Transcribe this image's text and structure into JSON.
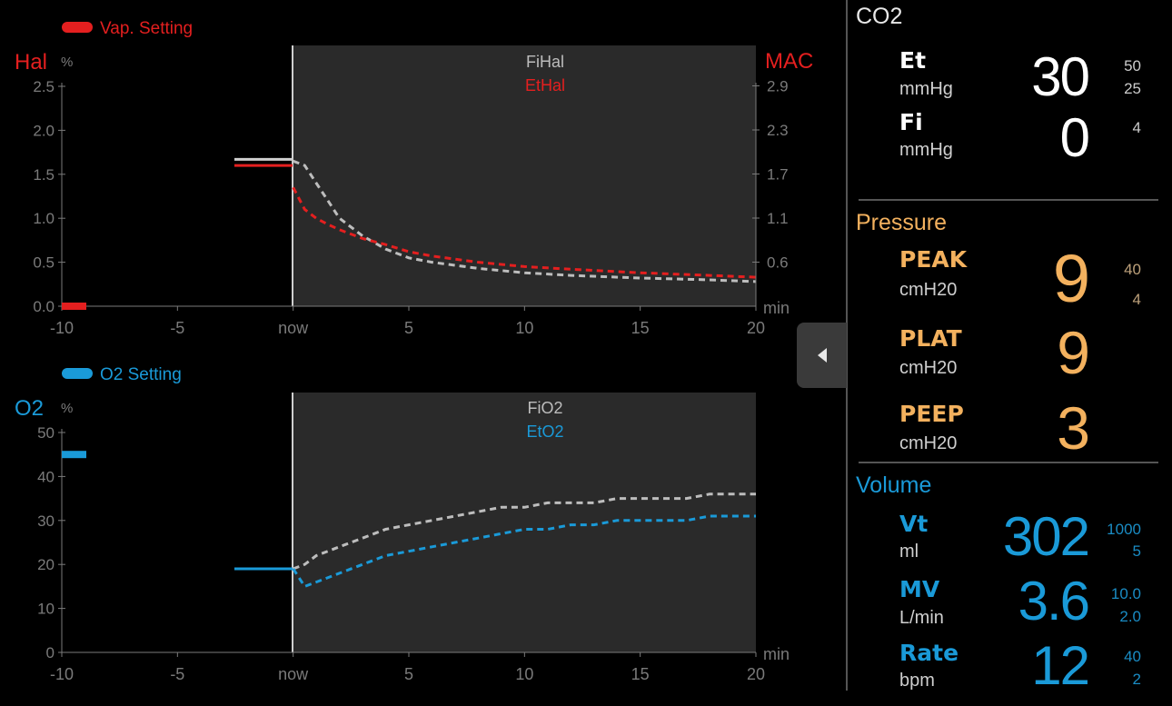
{
  "colors": {
    "red": "#e41f1f",
    "blue": "#1a9ad8",
    "orange": "#f3b15e",
    "white": "#ffffff",
    "grey": "#7a7a7a",
    "panel": "#2a2a2a"
  },
  "hal_chart": {
    "legend_label": "Vap. Setting",
    "left_axis_title": "Hal",
    "left_unit": "%",
    "right_axis_title": "MAC",
    "trace_label_1": "FiHal",
    "trace_label_2": "EtHal",
    "x_unit": "min",
    "x_ticks": [
      "-10",
      "-5",
      "now",
      "5",
      "10",
      "15",
      "20"
    ],
    "y_ticks": [
      "0.0",
      "0.5",
      "1.0",
      "1.5",
      "2.0",
      "2.5"
    ],
    "right_ticks": [
      "0.6",
      "1.1",
      "1.7",
      "2.3",
      "2.9"
    ]
  },
  "o2_chart": {
    "legend_label": "O2 Setting",
    "left_axis_title": "O2",
    "left_unit": "%",
    "trace_label_1": "FiO2",
    "trace_label_2": "EtO2",
    "x_unit": "min",
    "x_ticks": [
      "-10",
      "-5",
      "now",
      "5",
      "10",
      "15",
      "20"
    ],
    "y_ticks": [
      "0",
      "10",
      "20",
      "30",
      "40",
      "50"
    ]
  },
  "chart_data": [
    {
      "type": "line",
      "title": "",
      "xlabel": "min",
      "ylabel": "Hal %",
      "xlim": [
        -10,
        20
      ],
      "ylim": [
        0,
        2.5
      ],
      "series": [
        {
          "name": "FiHal",
          "x": [
            0,
            0.5,
            1,
            1.5,
            2,
            3,
            4,
            5,
            6,
            8,
            10,
            12,
            15,
            18,
            20
          ],
          "values": [
            1.65,
            1.6,
            1.4,
            1.2,
            1.0,
            0.8,
            0.65,
            0.55,
            0.5,
            0.43,
            0.38,
            0.35,
            0.32,
            0.3,
            0.28
          ]
        },
        {
          "name": "EtHal",
          "x": [
            0,
            0.5,
            1,
            1.5,
            2,
            3,
            4,
            5,
            6,
            8,
            10,
            12,
            15,
            18,
            20
          ],
          "values": [
            1.35,
            1.1,
            1.0,
            0.93,
            0.87,
            0.77,
            0.7,
            0.62,
            0.57,
            0.5,
            0.45,
            0.42,
            0.38,
            0.35,
            0.33
          ]
        }
      ],
      "vap_setting_before_now": 1.6
    },
    {
      "type": "line",
      "title": "",
      "xlabel": "min",
      "ylabel": "O2 %",
      "xlim": [
        -10,
        20
      ],
      "ylim": [
        0,
        50
      ],
      "series": [
        {
          "name": "FiO2",
          "x": [
            0,
            0.5,
            1,
            2,
            3,
            4,
            5,
            6,
            7,
            8,
            9,
            10,
            11,
            12,
            13,
            14,
            15,
            16,
            17,
            18,
            19,
            20
          ],
          "values": [
            19,
            20,
            22,
            24,
            26,
            28,
            29,
            30,
            31,
            32,
            33,
            33,
            34,
            34,
            34,
            35,
            35,
            35,
            35,
            36,
            36,
            36
          ]
        },
        {
          "name": "EtO2",
          "x": [
            0,
            0.5,
            1,
            2,
            3,
            4,
            5,
            6,
            7,
            8,
            9,
            10,
            11,
            12,
            13,
            14,
            15,
            16,
            17,
            18,
            19,
            20
          ],
          "values": [
            19,
            15,
            16,
            18,
            20,
            22,
            23,
            24,
            25,
            26,
            27,
            28,
            28,
            29,
            29,
            30,
            30,
            30,
            30,
            31,
            31,
            31
          ]
        }
      ],
      "o2_setting_before_now": 45,
      "fio2_before_now": 19
    }
  ],
  "co2": {
    "title": "CO2",
    "et_label": "Et",
    "et_unit": "mmHg",
    "et_value": "30",
    "et_high": "50",
    "et_low": "25",
    "fi_label": "Fi",
    "fi_unit": "mmHg",
    "fi_value": "0",
    "fi_high": "4"
  },
  "pressure": {
    "title": "Pressure",
    "peak_label": "PEAK",
    "peak_unit": "cmH20",
    "peak_value": "9",
    "peak_high": "40",
    "peak_low": "4",
    "plat_label": "PLAT",
    "plat_unit": "cmH20",
    "plat_value": "9",
    "peep_label": "PEEP",
    "peep_unit": "cmH20",
    "peep_value": "3"
  },
  "volume": {
    "title": "Volume",
    "vt_label": "Vt",
    "vt_unit": "ml",
    "vt_value": "302",
    "vt_high": "1000",
    "vt_low": "5",
    "mv_label": "MV",
    "mv_unit": "L/min",
    "mv_value": "3.6",
    "mv_high": "10.0",
    "mv_low": "2.0",
    "rate_label": "Rate",
    "rate_unit": "bpm",
    "rate_value": "12",
    "rate_high": "40",
    "rate_low": "2"
  }
}
